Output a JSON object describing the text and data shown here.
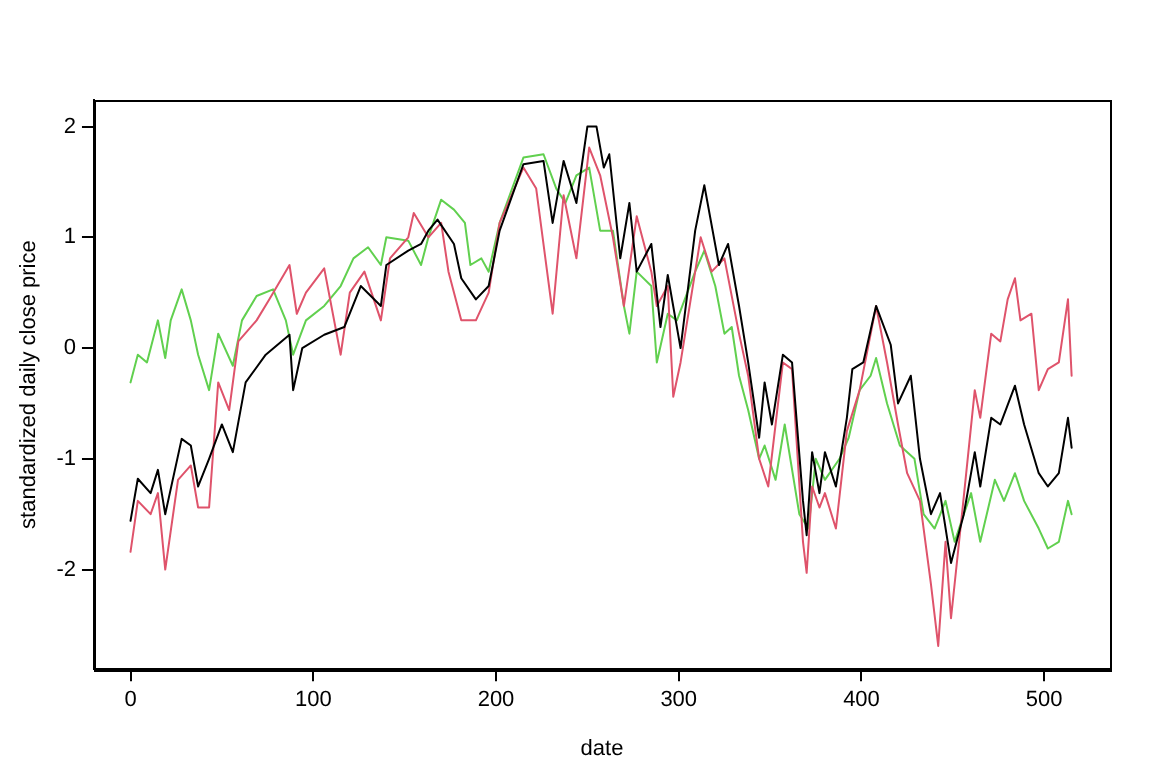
{
  "chart_data": {
    "type": "line",
    "xlabel": "date",
    "ylabel": "standardized daily close price",
    "xlim": [
      -20,
      536
    ],
    "xticks": [
      0,
      100,
      200,
      300,
      400,
      500
    ],
    "ylim": [
      -2.9,
      2.24
    ],
    "yticks": [
      -2,
      -1,
      0,
      1,
      2
    ],
    "grid": false,
    "legend": false,
    "marker": "none",
    "line_style": "solid",
    "series": [
      {
        "color": "#000000",
        "x": [
          0,
          4,
          11,
          15,
          19,
          28,
          33,
          37,
          43,
          50,
          56,
          63,
          74,
          87,
          89,
          94,
          106,
          117,
          126,
          137,
          140,
          152,
          159,
          163,
          168,
          177,
          181,
          189,
          196,
          202,
          215,
          226,
          231,
          237,
          244,
          250,
          255,
          259,
          262,
          268,
          273,
          277,
          285,
          290,
          294,
          301,
          309,
          314,
          322,
          327,
          333,
          338,
          344,
          347,
          351,
          357,
          362,
          368,
          370,
          373,
          377,
          380,
          386,
          392,
          395,
          401,
          408,
          416,
          420,
          427,
          432,
          438,
          443,
          449,
          456,
          462,
          465,
          471,
          476,
          484,
          489,
          497,
          502,
          508,
          513,
          515
        ],
        "values": [
          -1.56,
          -1.18,
          -1.31,
          -1.1,
          -1.5,
          -0.82,
          -0.88,
          -1.25,
          -1.0,
          -0.69,
          -0.94,
          -0.31,
          -0.06,
          0.12,
          -0.38,
          0,
          0.12,
          0.19,
          0.56,
          0.38,
          0.75,
          0.88,
          0.94,
          1.06,
          1.16,
          0.94,
          0.63,
          0.44,
          0.56,
          1.06,
          1.66,
          1.69,
          1.13,
          1.69,
          1.31,
          2.0,
          2.0,
          1.63,
          1.75,
          0.81,
          1.31,
          0.69,
          0.94,
          0.19,
          0.66,
          0,
          1.06,
          1.47,
          0.75,
          0.94,
          0.38,
          -0.13,
          -0.81,
          -0.31,
          -0.69,
          -0.06,
          -0.13,
          -1.38,
          -1.69,
          -0.94,
          -1.31,
          -0.94,
          -1.25,
          -0.63,
          -0.19,
          -0.13,
          0.38,
          0.03,
          -0.5,
          -0.25,
          -1.0,
          -1.5,
          -1.31,
          -1.94,
          -1.5,
          -0.94,
          -1.25,
          -0.63,
          -0.69,
          -0.34,
          -0.69,
          -1.13,
          -1.25,
          -1.13,
          -0.63,
          -0.9
        ]
      },
      {
        "color": "#df536b",
        "x": [
          0,
          4,
          11,
          15,
          19,
          26,
          33,
          37,
          43,
          48,
          54,
          59,
          69,
          76,
          87,
          91,
          96,
          106,
          115,
          120,
          128,
          137,
          142,
          152,
          155,
          163,
          170,
          174,
          181,
          189,
          196,
          202,
          215,
          222,
          231,
          237,
          244,
          251,
          257,
          264,
          270,
          277,
          285,
          288,
          294,
          297,
          301,
          309,
          312,
          318,
          325,
          333,
          338,
          344,
          349,
          357,
          362,
          368,
          370,
          373,
          377,
          380,
          386,
          392,
          399,
          408,
          414,
          420,
          425,
          432,
          438,
          442,
          446,
          449,
          455,
          462,
          465,
          471,
          476,
          480,
          484,
          487,
          493,
          497,
          502,
          508,
          513,
          515
        ],
        "values": [
          -1.84,
          -1.38,
          -1.5,
          -1.31,
          -2.0,
          -1.19,
          -1.06,
          -1.44,
          -1.44,
          -0.31,
          -0.56,
          0.06,
          0.25,
          0.44,
          0.75,
          0.31,
          0.5,
          0.72,
          -0.06,
          0.5,
          0.69,
          0.25,
          0.81,
          1.0,
          1.22,
          1.0,
          1.13,
          0.69,
          0.25,
          0.25,
          0.5,
          1.13,
          1.63,
          1.44,
          0.31,
          1.38,
          0.81,
          1.81,
          1.56,
          1.0,
          0.38,
          1.19,
          0.69,
          0.38,
          0.56,
          -0.44,
          -0.13,
          0.69,
          1.0,
          0.69,
          0.81,
          0.13,
          -0.25,
          -1.0,
          -1.25,
          -0.13,
          -0.19,
          -1.75,
          -2.03,
          -1.25,
          -1.44,
          -1.31,
          -1.63,
          -0.75,
          -0.38,
          0.38,
          -0.13,
          -0.69,
          -1.13,
          -1.38,
          -2.13,
          -2.69,
          -1.75,
          -2.44,
          -1.5,
          -0.38,
          -0.63,
          0.13,
          0.06,
          0.44,
          0.63,
          0.25,
          0.31,
          -0.38,
          -0.19,
          -0.13,
          0.44,
          -0.25
        ]
      },
      {
        "color": "#61d04f",
        "x": [
          0,
          4,
          9,
          15,
          19,
          22,
          28,
          33,
          37,
          43,
          48,
          56,
          61,
          69,
          78,
          85,
          89,
          96,
          106,
          115,
          122,
          130,
          137,
          140,
          152,
          159,
          163,
          170,
          177,
          183,
          186,
          192,
          196,
          202,
          215,
          226,
          233,
          238,
          244,
          251,
          257,
          264,
          270,
          273,
          277,
          285,
          288,
          294,
          299,
          309,
          314,
          320,
          325,
          329,
          333,
          338,
          344,
          347,
          353,
          358,
          366,
          371,
          375,
          380,
          388,
          393,
          399,
          405,
          408,
          414,
          421,
          429,
          434,
          440,
          446,
          451,
          456,
          460,
          465,
          473,
          478,
          484,
          489,
          497,
          502,
          508,
          513,
          515
        ],
        "values": [
          -0.31,
          -0.06,
          -0.13,
          0.25,
          -0.09,
          0.25,
          0.53,
          0.25,
          -0.06,
          -0.38,
          0.13,
          -0.16,
          0.25,
          0.47,
          0.53,
          0.25,
          -0.06,
          0.25,
          0.38,
          0.56,
          0.81,
          0.91,
          0.75,
          1.0,
          0.97,
          0.75,
          1.0,
          1.34,
          1.25,
          1.13,
          0.75,
          0.81,
          0.69,
          1.13,
          1.72,
          1.75,
          1.44,
          1.31,
          1.56,
          1.63,
          1.06,
          1.06,
          0.38,
          0.13,
          0.69,
          0.56,
          -0.13,
          0.31,
          0.25,
          0.69,
          0.88,
          0.56,
          0.13,
          0.19,
          -0.25,
          -0.56,
          -1.0,
          -0.88,
          -1.19,
          -0.69,
          -1.5,
          -1.63,
          -1.0,
          -1.19,
          -1.0,
          -0.81,
          -0.38,
          -0.25,
          -0.09,
          -0.5,
          -0.88,
          -1.0,
          -1.5,
          -1.63,
          -1.38,
          -1.75,
          -1.5,
          -1.31,
          -1.75,
          -1.19,
          -1.38,
          -1.13,
          -1.38,
          -1.63,
          -1.81,
          -1.75,
          -1.38,
          -1.5
        ]
      }
    ]
  }
}
